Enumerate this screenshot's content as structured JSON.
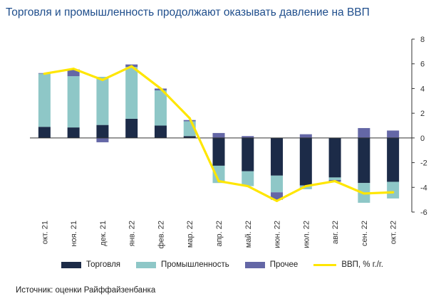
{
  "title": "Торговля и промышленность продолжают оказывать давление на ВВП",
  "source": "Источник: оценки Райффайзенбанка",
  "colors": {
    "trade": "#1c2b48",
    "industry": "#8ec7c7",
    "other": "#6467a6",
    "gdp": "#ffe600"
  },
  "chart_data": {
    "type": "bar",
    "stacked": true,
    "categories": [
      "окт. 21",
      "ноя. 21",
      "дек. 21",
      "янв. 22",
      "фев. 22",
      "мар. 22",
      "апр. 22",
      "май. 22",
      "июн. 22",
      "июл. 22",
      "авг. 22",
      "сен. 22",
      "окт. 22"
    ],
    "series": [
      {
        "name": "Торговля",
        "type": "bar",
        "values": [
          0.9,
          0.85,
          1.05,
          1.55,
          1.0,
          0.15,
          -2.25,
          -2.7,
          -3.05,
          -3.85,
          -3.2,
          -3.65,
          -3.55
        ]
      },
      {
        "name": "Промышленность",
        "type": "bar",
        "values": [
          4.3,
          4.15,
          3.9,
          4.2,
          2.85,
          1.2,
          -1.4,
          -1.2,
          -1.35,
          -0.3,
          -0.2,
          -1.6,
          -1.35
        ]
      },
      {
        "name": "Прочее",
        "type": "bar",
        "values": [
          0.05,
          0.55,
          -0.35,
          0.2,
          0.15,
          0.1,
          0.4,
          0.15,
          -0.6,
          0.3,
          -0.15,
          0.8,
          0.6
        ]
      },
      {
        "name": "ВВП, % г./г.",
        "type": "line",
        "values": [
          5.2,
          5.6,
          4.7,
          5.8,
          4.0,
          1.6,
          -3.5,
          -3.9,
          -5.1,
          -3.9,
          -3.5,
          -4.5,
          -4.4
        ]
      }
    ],
    "y_axis": {
      "position": "right",
      "ylim": [
        -6,
        8
      ],
      "ticks": [
        8,
        6,
        4,
        2,
        0,
        -2,
        -4,
        -6
      ]
    },
    "grid": false,
    "legend": "bottom"
  }
}
